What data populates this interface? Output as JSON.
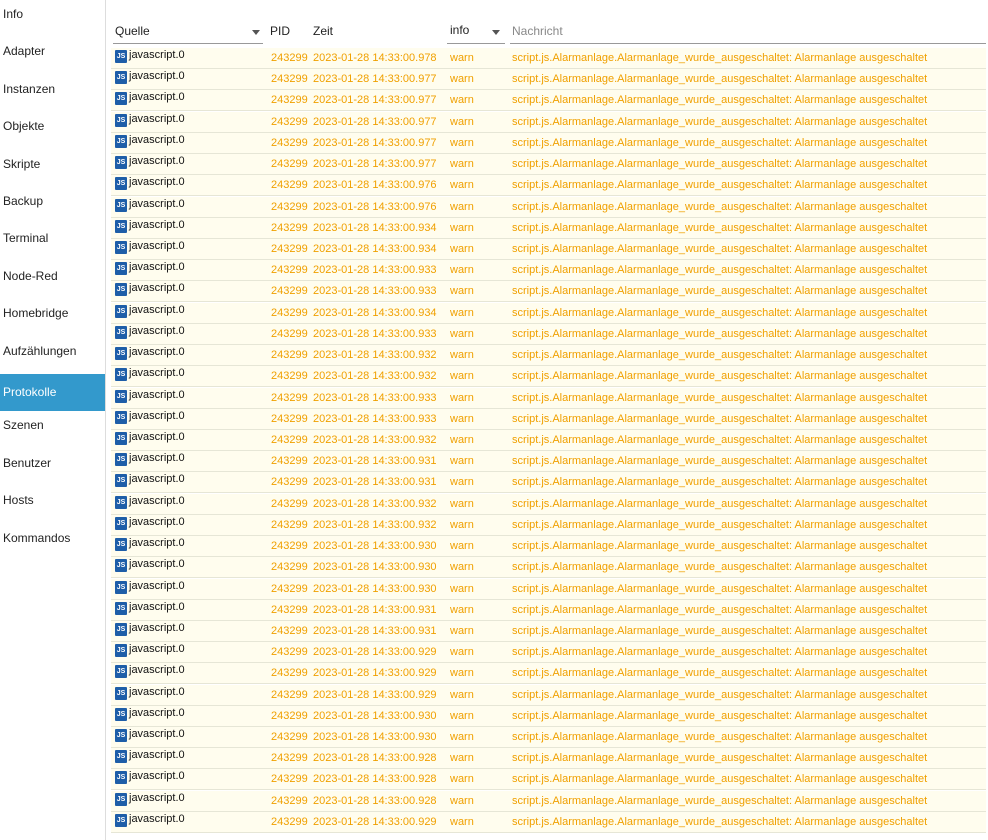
{
  "sidebar": {
    "items": [
      "Info",
      "Adapter",
      "Instanzen",
      "Objekte",
      "Skripte",
      "Backup",
      "Terminal",
      "Node-Red",
      "Homebridge",
      "Aufzählungen",
      "Protokolle",
      "Szenen",
      "Benutzer",
      "Hosts",
      "Kommandos"
    ],
    "active": "Protokolle"
  },
  "log": {
    "header": {
      "source": "Quelle",
      "pid": "PID",
      "time": "Zeit",
      "level": "info",
      "message": "Nachricht"
    },
    "rows": [
      [
        "javascript.0",
        "243299",
        "2023-01-28 14:33:00.978",
        "warn",
        "script.js.Alarmanlage.Alarmanlage_wurde_ausgeschaltet: Alarmanlage ausgeschaltet"
      ],
      [
        "javascript.0",
        "243299",
        "2023-01-28 14:33:00.977",
        "warn",
        "script.js.Alarmanlage.Alarmanlage_wurde_ausgeschaltet: Alarmanlage ausgeschaltet"
      ],
      [
        "javascript.0",
        "243299",
        "2023-01-28 14:33:00.977",
        "warn",
        "script.js.Alarmanlage.Alarmanlage_wurde_ausgeschaltet: Alarmanlage ausgeschaltet"
      ],
      [
        "javascript.0",
        "243299",
        "2023-01-28 14:33:00.977",
        "warn",
        "script.js.Alarmanlage.Alarmanlage_wurde_ausgeschaltet: Alarmanlage ausgeschaltet"
      ],
      [
        "javascript.0",
        "243299",
        "2023-01-28 14:33:00.977",
        "warn",
        "script.js.Alarmanlage.Alarmanlage_wurde_ausgeschaltet: Alarmanlage ausgeschaltet"
      ],
      [
        "javascript.0",
        "243299",
        "2023-01-28 14:33:00.977",
        "warn",
        "script.js.Alarmanlage.Alarmanlage_wurde_ausgeschaltet: Alarmanlage ausgeschaltet"
      ],
      [
        "javascript.0",
        "243299",
        "2023-01-28 14:33:00.976",
        "warn",
        "script.js.Alarmanlage.Alarmanlage_wurde_ausgeschaltet: Alarmanlage ausgeschaltet"
      ],
      [
        "javascript.0",
        "243299",
        "2023-01-28 14:33:00.976",
        "warn",
        "script.js.Alarmanlage.Alarmanlage_wurde_ausgeschaltet: Alarmanlage ausgeschaltet"
      ],
      [
        "javascript.0",
        "243299",
        "2023-01-28 14:33:00.934",
        "warn",
        "script.js.Alarmanlage.Alarmanlage_wurde_ausgeschaltet: Alarmanlage ausgeschaltet"
      ],
      [
        "javascript.0",
        "243299",
        "2023-01-28 14:33:00.934",
        "warn",
        "script.js.Alarmanlage.Alarmanlage_wurde_ausgeschaltet: Alarmanlage ausgeschaltet"
      ],
      [
        "javascript.0",
        "243299",
        "2023-01-28 14:33:00.933",
        "warn",
        "script.js.Alarmanlage.Alarmanlage_wurde_ausgeschaltet: Alarmanlage ausgeschaltet"
      ],
      [
        "javascript.0",
        "243299",
        "2023-01-28 14:33:00.933",
        "warn",
        "script.js.Alarmanlage.Alarmanlage_wurde_ausgeschaltet: Alarmanlage ausgeschaltet"
      ],
      [
        "javascript.0",
        "243299",
        "2023-01-28 14:33:00.934",
        "warn",
        "script.js.Alarmanlage.Alarmanlage_wurde_ausgeschaltet: Alarmanlage ausgeschaltet"
      ],
      [
        "javascript.0",
        "243299",
        "2023-01-28 14:33:00.933",
        "warn",
        "script.js.Alarmanlage.Alarmanlage_wurde_ausgeschaltet: Alarmanlage ausgeschaltet"
      ],
      [
        "javascript.0",
        "243299",
        "2023-01-28 14:33:00.932",
        "warn",
        "script.js.Alarmanlage.Alarmanlage_wurde_ausgeschaltet: Alarmanlage ausgeschaltet"
      ],
      [
        "javascript.0",
        "243299",
        "2023-01-28 14:33:00.932",
        "warn",
        "script.js.Alarmanlage.Alarmanlage_wurde_ausgeschaltet: Alarmanlage ausgeschaltet"
      ],
      [
        "javascript.0",
        "243299",
        "2023-01-28 14:33:00.933",
        "warn",
        "script.js.Alarmanlage.Alarmanlage_wurde_ausgeschaltet: Alarmanlage ausgeschaltet"
      ],
      [
        "javascript.0",
        "243299",
        "2023-01-28 14:33:00.933",
        "warn",
        "script.js.Alarmanlage.Alarmanlage_wurde_ausgeschaltet: Alarmanlage ausgeschaltet"
      ],
      [
        "javascript.0",
        "243299",
        "2023-01-28 14:33:00.932",
        "warn",
        "script.js.Alarmanlage.Alarmanlage_wurde_ausgeschaltet: Alarmanlage ausgeschaltet"
      ],
      [
        "javascript.0",
        "243299",
        "2023-01-28 14:33:00.931",
        "warn",
        "script.js.Alarmanlage.Alarmanlage_wurde_ausgeschaltet: Alarmanlage ausgeschaltet"
      ],
      [
        "javascript.0",
        "243299",
        "2023-01-28 14:33:00.931",
        "warn",
        "script.js.Alarmanlage.Alarmanlage_wurde_ausgeschaltet: Alarmanlage ausgeschaltet"
      ],
      [
        "javascript.0",
        "243299",
        "2023-01-28 14:33:00.932",
        "warn",
        "script.js.Alarmanlage.Alarmanlage_wurde_ausgeschaltet: Alarmanlage ausgeschaltet"
      ],
      [
        "javascript.0",
        "243299",
        "2023-01-28 14:33:00.932",
        "warn",
        "script.js.Alarmanlage.Alarmanlage_wurde_ausgeschaltet: Alarmanlage ausgeschaltet"
      ],
      [
        "javascript.0",
        "243299",
        "2023-01-28 14:33:00.930",
        "warn",
        "script.js.Alarmanlage.Alarmanlage_wurde_ausgeschaltet: Alarmanlage ausgeschaltet"
      ],
      [
        "javascript.0",
        "243299",
        "2023-01-28 14:33:00.930",
        "warn",
        "script.js.Alarmanlage.Alarmanlage_wurde_ausgeschaltet: Alarmanlage ausgeschaltet"
      ],
      [
        "javascript.0",
        "243299",
        "2023-01-28 14:33:00.930",
        "warn",
        "script.js.Alarmanlage.Alarmanlage_wurde_ausgeschaltet: Alarmanlage ausgeschaltet"
      ],
      [
        "javascript.0",
        "243299",
        "2023-01-28 14:33:00.931",
        "warn",
        "script.js.Alarmanlage.Alarmanlage_wurde_ausgeschaltet: Alarmanlage ausgeschaltet"
      ],
      [
        "javascript.0",
        "243299",
        "2023-01-28 14:33:00.931",
        "warn",
        "script.js.Alarmanlage.Alarmanlage_wurde_ausgeschaltet: Alarmanlage ausgeschaltet"
      ],
      [
        "javascript.0",
        "243299",
        "2023-01-28 14:33:00.929",
        "warn",
        "script.js.Alarmanlage.Alarmanlage_wurde_ausgeschaltet: Alarmanlage ausgeschaltet"
      ],
      [
        "javascript.0",
        "243299",
        "2023-01-28 14:33:00.929",
        "warn",
        "script.js.Alarmanlage.Alarmanlage_wurde_ausgeschaltet: Alarmanlage ausgeschaltet"
      ],
      [
        "javascript.0",
        "243299",
        "2023-01-28 14:33:00.929",
        "warn",
        "script.js.Alarmanlage.Alarmanlage_wurde_ausgeschaltet: Alarmanlage ausgeschaltet"
      ],
      [
        "javascript.0",
        "243299",
        "2023-01-28 14:33:00.930",
        "warn",
        "script.js.Alarmanlage.Alarmanlage_wurde_ausgeschaltet: Alarmanlage ausgeschaltet"
      ],
      [
        "javascript.0",
        "243299",
        "2023-01-28 14:33:00.930",
        "warn",
        "script.js.Alarmanlage.Alarmanlage_wurde_ausgeschaltet: Alarmanlage ausgeschaltet"
      ],
      [
        "javascript.0",
        "243299",
        "2023-01-28 14:33:00.928",
        "warn",
        "script.js.Alarmanlage.Alarmanlage_wurde_ausgeschaltet: Alarmanlage ausgeschaltet"
      ],
      [
        "javascript.0",
        "243299",
        "2023-01-28 14:33:00.928",
        "warn",
        "script.js.Alarmanlage.Alarmanlage_wurde_ausgeschaltet: Alarmanlage ausgeschaltet"
      ],
      [
        "javascript.0",
        "243299",
        "2023-01-28 14:33:00.928",
        "warn",
        "script.js.Alarmanlage.Alarmanlage_wurde_ausgeschaltet: Alarmanlage ausgeschaltet"
      ],
      [
        "javascript.0",
        "243299",
        "2023-01-28 14:33:00.929",
        "warn",
        "script.js.Alarmanlage.Alarmanlage_wurde_ausgeschaltet: Alarmanlage ausgeschaltet"
      ]
    ]
  }
}
